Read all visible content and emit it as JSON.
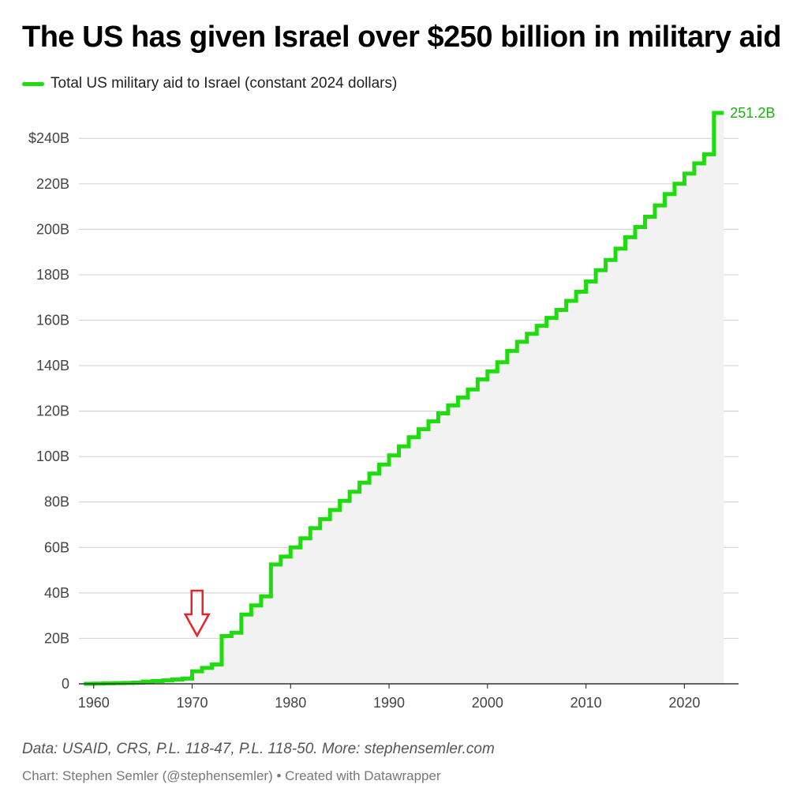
{
  "title": "The US has given Israel over $250 billion in military aid",
  "legend": {
    "label": "Total US military aid to Israel (constant 2024 dollars)"
  },
  "source": "Data: USAID, CRS, P.L. 118-47, P.L. 118-50. More: stephensemler.com",
  "credit": "Chart: Stephen Semler (@stephensemler) • Created with Datawrapper",
  "colors": {
    "line": "#1edc0e",
    "area": "#f2f2f2",
    "grid": "#d6d6d6",
    "axis": "#333333",
    "arrow": "#e8232a",
    "end_label": "#18b20c"
  },
  "annotation_icon": "red-down-arrow-icon",
  "chart_data": {
    "type": "area",
    "step": true,
    "grid": true,
    "xlim": [
      1958.5,
      2025.5
    ],
    "ylim": [
      0,
      251.2
    ],
    "x_ticks": [
      1960,
      1970,
      1980,
      1990,
      2000,
      2010,
      2020
    ],
    "y_ticks": [
      0,
      20,
      40,
      60,
      80,
      100,
      120,
      140,
      160,
      180,
      200,
      220,
      240
    ],
    "y_tick_labels": [
      "0",
      "20B",
      "40B",
      "60B",
      "80B",
      "100B",
      "120B",
      "140B",
      "160B",
      "180B",
      "200B",
      "220B",
      "$240B"
    ],
    "end_label": "251.2B",
    "annotation_x": 1970.5,
    "series": [
      {
        "name": "Total US military aid to Israel (constant 2024 dollars)",
        "x": [
          1959,
          1960,
          1961,
          1962,
          1963,
          1964,
          1965,
          1966,
          1967,
          1968,
          1969,
          1970,
          1971,
          1972,
          1973,
          1974,
          1975,
          1976,
          1977,
          1978,
          1979,
          1980,
          1981,
          1982,
          1983,
          1984,
          1985,
          1986,
          1987,
          1988,
          1989,
          1990,
          1991,
          1992,
          1993,
          1994,
          1995,
          1996,
          1997,
          1998,
          1999,
          2000,
          2001,
          2002,
          2003,
          2004,
          2005,
          2006,
          2007,
          2008,
          2009,
          2010,
          2011,
          2012,
          2013,
          2014,
          2015,
          2016,
          2017,
          2018,
          2019,
          2020,
          2021,
          2022,
          2023,
          2024
        ],
        "values": [
          0,
          0.1,
          0.2,
          0.3,
          0.4,
          0.5,
          1.0,
          1.2,
          1.5,
          1.9,
          2.3,
          5.5,
          7.0,
          8.5,
          21.0,
          22.5,
          30.5,
          34.5,
          38.5,
          52.5,
          56.0,
          60.0,
          64.0,
          68.5,
          72.5,
          76.5,
          80.5,
          84.5,
          88.5,
          92.5,
          96.5,
          100.5,
          104.5,
          108.5,
          112.0,
          115.5,
          119.0,
          122.5,
          126.0,
          129.5,
          134.0,
          137.5,
          141.5,
          146.5,
          150.5,
          154.0,
          157.5,
          161.0,
          164.5,
          168.5,
          172.5,
          177.0,
          182.0,
          186.5,
          191.5,
          196.5,
          201.0,
          205.5,
          210.5,
          215.5,
          220.0,
          224.5,
          229.0,
          233.0,
          251.2,
          251.2
        ]
      }
    ]
  }
}
